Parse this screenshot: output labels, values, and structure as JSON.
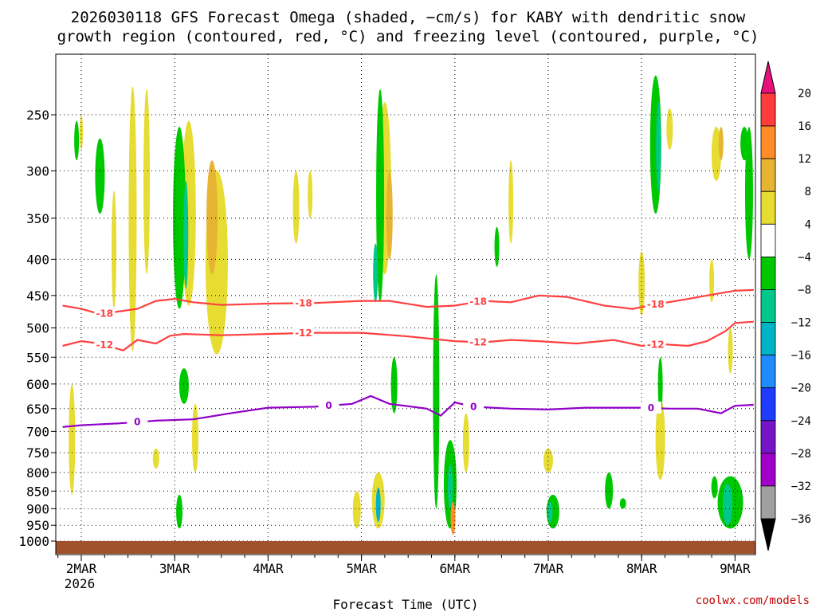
{
  "chart_data": {
    "type": "heatmap",
    "title_line1": "2026030118 GFS Forecast Omega (shaded, −cm/s) for KABY with dendritic snow",
    "title_line2": "growth region (contoured, red, °C) and freezing level (contoured, purple, °C)",
    "xlabel": "Forecast Time (UTC)",
    "x_ticks": [
      "2MAR",
      "3MAR",
      "4MAR",
      "5MAR",
      "6MAR",
      "7MAR",
      "8MAR",
      "9MAR"
    ],
    "x_first_year": "2026",
    "x_range_days": [
      1.8,
      9.2
    ],
    "y_ticks": [
      250,
      300,
      350,
      400,
      450,
      500,
      550,
      600,
      650,
      700,
      750,
      800,
      850,
      900,
      950,
      1000
    ],
    "y_range_hpa": [
      200,
      1010
    ],
    "colorbar": {
      "labels": [
        "20",
        "16",
        "12",
        "8",
        "4",
        "−4",
        "−8",
        "−12",
        "−16",
        "−20",
        "−24",
        "−28",
        "−32",
        "−36"
      ],
      "colors": [
        "#e8107a",
        "#ff3c3c",
        "#ff8c28",
        "#e6b432",
        "#e6dc32",
        "#ffffff",
        "#00c800",
        "#00c88c",
        "#00b4c8",
        "#1e8cff",
        "#1e3cff",
        "#7814c8",
        "#a000c8",
        "#a0a0a0",
        "#000000"
      ]
    },
    "contour_levels": [
      {
        "value": -18,
        "label": "-18",
        "color": "#ff4040",
        "points": [
          [
            1.8,
            465
          ],
          [
            2.0,
            470
          ],
          [
            2.2,
            478
          ],
          [
            2.4,
            474
          ],
          [
            2.6,
            470
          ],
          [
            2.8,
            458
          ],
          [
            3.0,
            455
          ],
          [
            3.2,
            460
          ],
          [
            3.5,
            464
          ],
          [
            4.0,
            462
          ],
          [
            4.5,
            461
          ],
          [
            5.0,
            458
          ],
          [
            5.3,
            458
          ],
          [
            5.7,
            467
          ],
          [
            6.0,
            465
          ],
          [
            6.3,
            458
          ],
          [
            6.6,
            460
          ],
          [
            6.9,
            450
          ],
          [
            7.2,
            452
          ],
          [
            7.6,
            465
          ],
          [
            7.9,
            470
          ],
          [
            8.2,
            462
          ],
          [
            8.5,
            455
          ],
          [
            8.7,
            450
          ],
          [
            9.0,
            443
          ],
          [
            9.2,
            442
          ]
        ],
        "label_at": [
          2.25,
          4.38,
          6.25,
          8.15
        ]
      },
      {
        "value": -12,
        "label": "-12",
        "color": "#ff4040",
        "points": [
          [
            1.8,
            530
          ],
          [
            2.0,
            522
          ],
          [
            2.2,
            526
          ],
          [
            2.45,
            538
          ],
          [
            2.6,
            520
          ],
          [
            2.8,
            526
          ],
          [
            2.95,
            513
          ],
          [
            3.1,
            510
          ],
          [
            3.5,
            512
          ],
          [
            4.0,
            510
          ],
          [
            4.5,
            508
          ],
          [
            5.0,
            508
          ],
          [
            5.5,
            514
          ],
          [
            6.0,
            522
          ],
          [
            6.3,
            524
          ],
          [
            6.6,
            520
          ],
          [
            6.9,
            522
          ],
          [
            7.3,
            526
          ],
          [
            7.7,
            520
          ],
          [
            8.0,
            530
          ],
          [
            8.2,
            527
          ],
          [
            8.5,
            530
          ],
          [
            8.7,
            522
          ],
          [
            8.9,
            505
          ],
          [
            9.0,
            492
          ],
          [
            9.2,
            490
          ]
        ],
        "label_at": [
          2.25,
          4.38,
          6.25,
          8.15
        ]
      },
      {
        "value": 0,
        "label": "0",
        "color": "#9000c8",
        "points": [
          [
            1.8,
            690
          ],
          [
            2.0,
            686
          ],
          [
            2.4,
            682
          ],
          [
            2.8,
            676
          ],
          [
            3.2,
            673
          ],
          [
            3.6,
            660
          ],
          [
            4.0,
            648
          ],
          [
            4.5,
            646
          ],
          [
            4.9,
            640
          ],
          [
            5.1,
            624
          ],
          [
            5.3,
            640
          ],
          [
            5.7,
            650
          ],
          [
            5.85,
            665
          ],
          [
            6.0,
            637
          ],
          [
            6.2,
            646
          ],
          [
            6.6,
            650
          ],
          [
            7.0,
            652
          ],
          [
            7.4,
            648
          ],
          [
            8.0,
            648
          ],
          [
            8.3,
            650
          ],
          [
            8.6,
            650
          ],
          [
            8.85,
            660
          ],
          [
            9.0,
            644
          ],
          [
            9.2,
            642
          ]
        ],
        "label_at": [
          2.6,
          4.65,
          6.2,
          8.1
        ]
      }
    ],
    "freezing_level_label": "0",
    "credit": "coolwx.com/models"
  }
}
